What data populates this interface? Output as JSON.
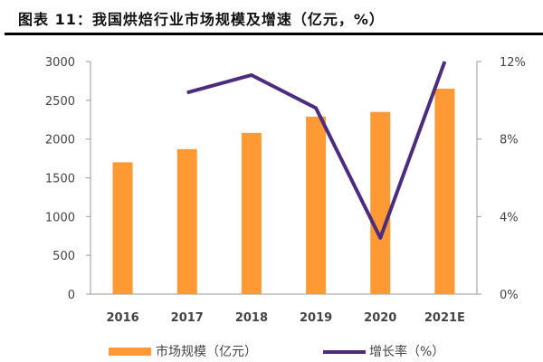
{
  "title": "图表 11：我国烘焙行业市场规模及增速（亿元，%）",
  "chart_data": {
    "type": "bar+line",
    "categories": [
      "2016",
      "2017",
      "2018",
      "2019",
      "2020",
      "2021E"
    ],
    "series": [
      {
        "name": "市场规模（亿元）",
        "type": "bar",
        "axis": "left",
        "color": "#FF9933",
        "values": [
          1700,
          1870,
          2080,
          2290,
          2350,
          2650
        ]
      },
      {
        "name": "增长率（%）",
        "type": "line",
        "axis": "right",
        "color": "#4B2C7F",
        "values": [
          null,
          10.4,
          11.3,
          9.6,
          2.9,
          12.0
        ]
      }
    ],
    "left_axis": {
      "ylim": [
        0,
        3000
      ],
      "ticks": [
        "0",
        "500",
        "1000",
        "1500",
        "2000",
        "2500",
        "3000"
      ]
    },
    "right_axis": {
      "ylim": [
        0,
        12
      ],
      "ticks": [
        "0%",
        "4%",
        "8%",
        "12%"
      ]
    },
    "grid": false,
    "legend": "bottom"
  }
}
